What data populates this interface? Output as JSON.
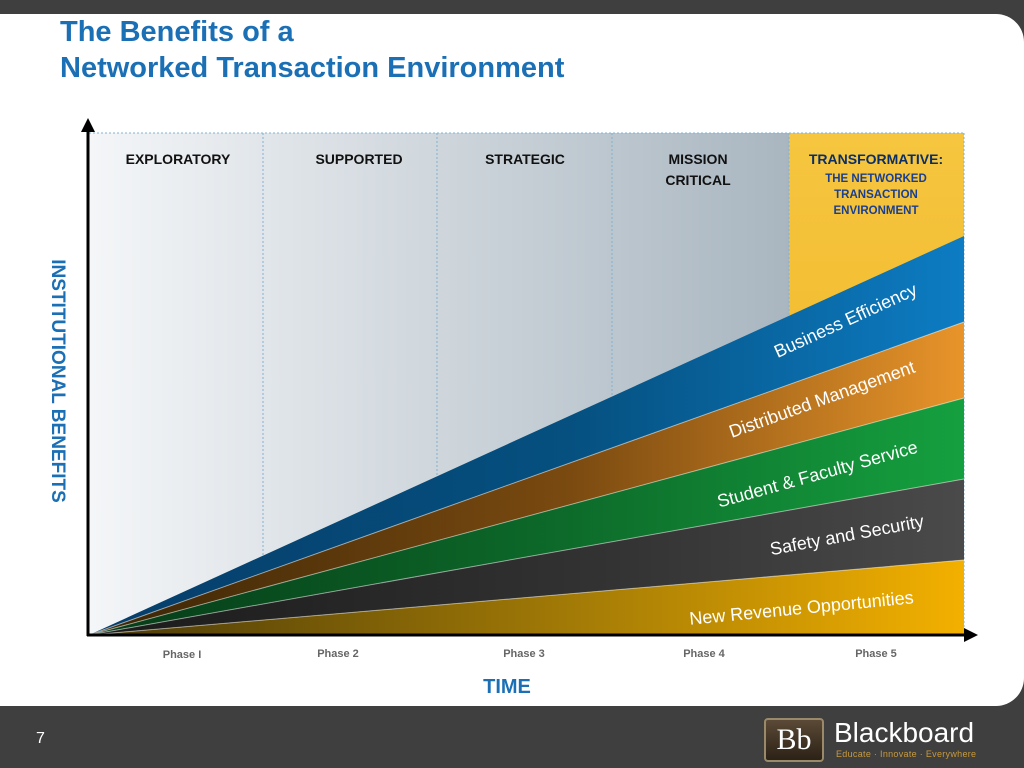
{
  "title": {
    "line1": "The Benefits of a",
    "line2": "Networked Transaction Environment"
  },
  "y_axis_label": "INSTITUTIONAL BENEFITS",
  "x_axis_label": "TIME",
  "stages": [
    {
      "lines": [
        "EXPLORATORY"
      ]
    },
    {
      "lines": [
        "SUPPORTED"
      ]
    },
    {
      "lines": [
        "STRATEGIC"
      ]
    },
    {
      "lines": [
        "MISSION",
        "CRITICAL"
      ]
    },
    {
      "lines": [
        "TRANSFORMATIVE:"
      ],
      "sub_lines": [
        "THE NETWORKED",
        "TRANSACTION",
        "ENVIRONMENT"
      ]
    }
  ],
  "phases": [
    "Phase I",
    "Phase 2",
    "Phase 3",
    "Phase 4",
    "Phase 5"
  ],
  "bands": [
    {
      "label": "Business Efficiency",
      "color": "#0d77bd"
    },
    {
      "label": "Distributed Management",
      "color": "#e08e20"
    },
    {
      "label": "Student & Faculty Service",
      "color": "#13973a"
    },
    {
      "label": "Safety and Security",
      "color": "#444444"
    },
    {
      "label": "New Revenue Opportunities",
      "color": "#f0a800"
    }
  ],
  "colors": {
    "title": "#1b6fb5",
    "transformative_header": "#0b2e66",
    "transformative_sub": "#1b3f8f",
    "transformative_bg": "#f3bd2e"
  },
  "footer": {
    "page_number": "7",
    "logo_initials": "Bb",
    "logo_name": "Blackboard",
    "logo_tagline": "Educate · Innovate · Everywhere"
  }
}
